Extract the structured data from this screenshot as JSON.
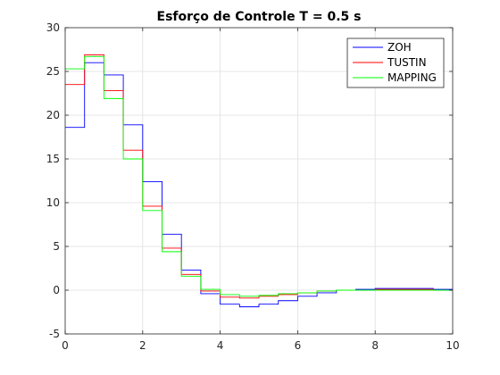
{
  "chart_data": {
    "type": "line",
    "step": true,
    "title": "Esforço de Controle T = 0.5 s",
    "xlabel": "",
    "ylabel": "",
    "xlim": [
      0,
      10
    ],
    "ylim": [
      -5,
      30
    ],
    "xticks": [
      0,
      2,
      4,
      6,
      8,
      10
    ],
    "yticks": [
      -5,
      0,
      5,
      10,
      15,
      20,
      25,
      30
    ],
    "grid": true,
    "legend_position": "top-right",
    "series": [
      {
        "name": "ZOH",
        "color": "#0000ff",
        "x": [
          0,
          0.5,
          1,
          1.5,
          2,
          2.5,
          3,
          3.5,
          4,
          4.5,
          5,
          5.5,
          6,
          6.5,
          7,
          7.5,
          8,
          8.5,
          9,
          9.5,
          10
        ],
        "y": [
          18.6,
          26.0,
          24.6,
          18.9,
          12.4,
          6.4,
          2.3,
          -0.4,
          -1.6,
          -1.9,
          -1.6,
          -1.2,
          -0.7,
          -0.3,
          0.0,
          0.1,
          0.2,
          0.2,
          0.2,
          0.1,
          0.1
        ]
      },
      {
        "name": "TUSTIN",
        "color": "#ff0000",
        "x": [
          0,
          0.5,
          1,
          1.5,
          2,
          2.5,
          3,
          3.5,
          4,
          4.5,
          5,
          5.5,
          6,
          6.5,
          7,
          7.5,
          8,
          8.5,
          9,
          9.5,
          10
        ],
        "y": [
          23.5,
          26.9,
          22.8,
          16.0,
          9.6,
          4.8,
          1.8,
          -0.1,
          -0.8,
          -0.9,
          -0.7,
          -0.5,
          -0.3,
          -0.1,
          0.0,
          0.0,
          0.1,
          0.1,
          0.1,
          0.0,
          0.0
        ]
      },
      {
        "name": "MAPPING",
        "color": "#00ff00",
        "x": [
          0,
          0.5,
          1,
          1.5,
          2,
          2.5,
          3,
          3.5,
          4,
          4.5,
          5,
          5.5,
          6,
          6.5,
          7,
          7.5,
          8,
          8.5,
          9,
          9.5,
          10
        ],
        "y": [
          25.3,
          26.7,
          21.9,
          15.0,
          9.1,
          4.4,
          1.6,
          0.1,
          -0.5,
          -0.7,
          -0.6,
          -0.4,
          -0.3,
          -0.1,
          0.0,
          0.0,
          0.0,
          0.0,
          0.0,
          0.0,
          0.0
        ]
      }
    ]
  }
}
